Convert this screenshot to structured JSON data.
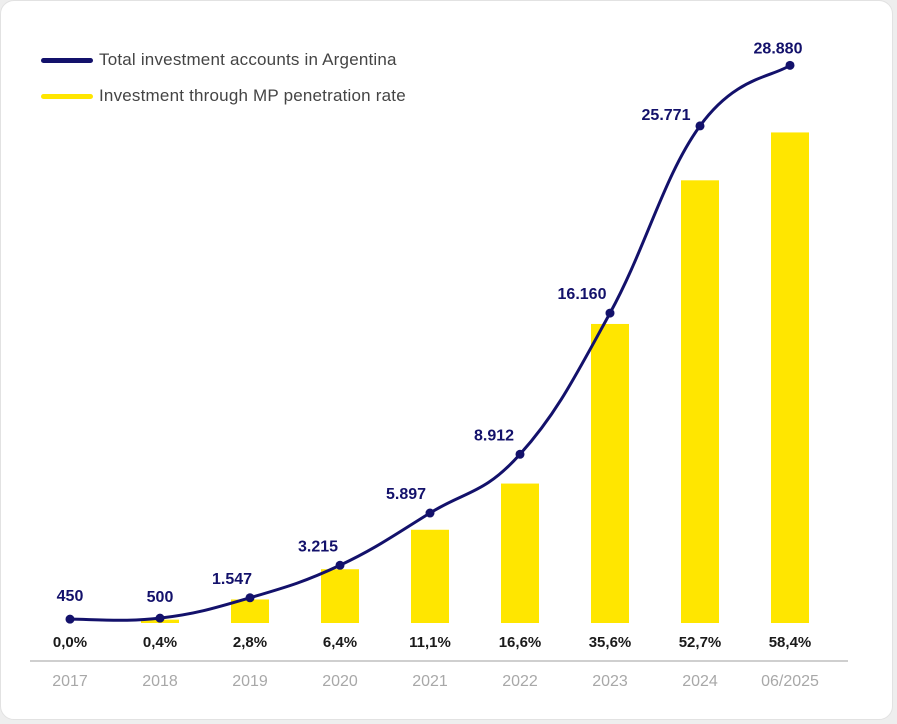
{
  "colors": {
    "line": "#13116b",
    "bar": "#ffe600",
    "axis": "#bfbfbf"
  },
  "legend": {
    "line_label": "Total investment accounts in Argentina",
    "bar_label": "Investment through MP penetration rate"
  },
  "chart_data": {
    "type": "bar+line",
    "categories": [
      "2017",
      "2018",
      "2019",
      "2020",
      "2021",
      "2022",
      "2023",
      "2024",
      "06/2025"
    ],
    "series": [
      {
        "name": "Total investment accounts in Argentina",
        "type": "line",
        "values": [
          450,
          500,
          1547,
          3215,
          5897,
          8912,
          16160,
          25771,
          28880
        ],
        "labels": [
          "450",
          "500",
          "1.547",
          "3.215",
          "5.897",
          "8.912",
          "16.160",
          "25.771",
          "28.880"
        ]
      },
      {
        "name": "Investment through MP penetration rate",
        "type": "bar",
        "values": [
          0.0,
          0.4,
          2.8,
          6.4,
          11.1,
          16.6,
          35.6,
          52.7,
          58.4
        ],
        "labels": [
          "0,0%",
          "0,4%",
          "2,8%",
          "6,4%",
          "11,1%",
          "16,6%",
          "35,6%",
          "52,7%",
          "58,4%"
        ]
      }
    ],
    "legend_position": "top-left",
    "grid": false
  }
}
